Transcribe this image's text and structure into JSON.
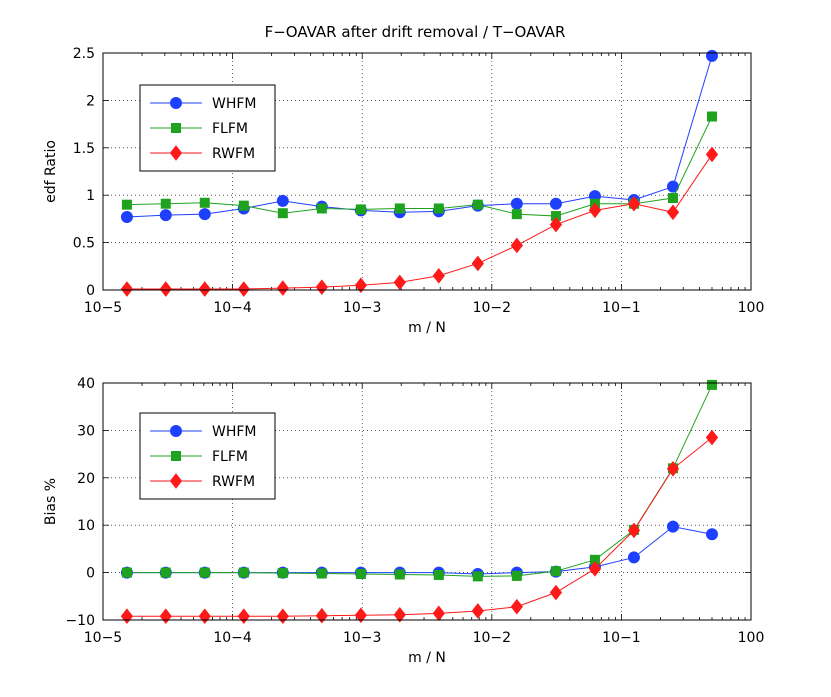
{
  "figure_title": "F−OAVAR after drift removal / T−OAVAR",
  "colors": {
    "WHFM": "#1f3fff",
    "FLFM": "#1fa31f",
    "RWFM": "#ff1a1a"
  },
  "chart_data": [
    {
      "type": "line",
      "title": "F−OAVAR after drift removal / T−OAVAR",
      "xlabel": "m / N",
      "ylabel": "edf Ratio",
      "xscale": "log",
      "xlim": [
        1e-05,
        1
      ],
      "ylim": [
        0,
        2.5
      ],
      "grid": true,
      "legend_position": "upper-left",
      "x_tick_labels": [
        "10−5",
        "10−4",
        "10−3",
        "10−2",
        "10−1",
        "100"
      ],
      "y_ticks": [
        0,
        0.5,
        1,
        1.5,
        2,
        2.5
      ],
      "y_tick_labels": [
        "0",
        "0.5",
        "1",
        "1.5",
        "2",
        "2.5"
      ],
      "x": [
        1.53e-05,
        3.05e-05,
        6.1e-05,
        0.000122,
        0.000244,
        0.000488,
        0.000977,
        0.00195,
        0.0039,
        0.0078,
        0.0156,
        0.03125,
        0.0625,
        0.125,
        0.25,
        0.5
      ],
      "series": [
        {
          "name": "WHFM",
          "marker": "circle",
          "values": [
            0.77,
            0.79,
            0.8,
            0.86,
            0.94,
            0.88,
            0.84,
            0.82,
            0.83,
            0.89,
            0.91,
            0.91,
            0.99,
            0.95,
            1.09,
            2.47
          ]
        },
        {
          "name": "FLFM",
          "marker": "square",
          "values": [
            0.9,
            0.91,
            0.92,
            0.89,
            0.81,
            0.86,
            0.85,
            0.86,
            0.86,
            0.9,
            0.8,
            0.78,
            0.91,
            0.91,
            0.97,
            1.83
          ]
        },
        {
          "name": "RWFM",
          "marker": "diamond",
          "values": [
            0.01,
            0.01,
            0.01,
            0.01,
            0.02,
            0.03,
            0.05,
            0.08,
            0.15,
            0.28,
            0.47,
            0.69,
            0.84,
            0.91,
            0.82,
            1.43
          ]
        }
      ]
    },
    {
      "type": "line",
      "title": "",
      "xlabel": "m / N",
      "ylabel": "Bias %",
      "xscale": "log",
      "xlim": [
        1e-05,
        1
      ],
      "ylim": [
        -10,
        40
      ],
      "grid": true,
      "legend_position": "upper-left",
      "x_tick_labels": [
        "10−5",
        "10−4",
        "10−3",
        "10−2",
        "10−1",
        "100"
      ],
      "y_ticks": [
        -10,
        0,
        10,
        20,
        30,
        40
      ],
      "y_tick_labels": [
        "−10",
        "0",
        "10",
        "20",
        "30",
        "40"
      ],
      "x": [
        1.53e-05,
        3.05e-05,
        6.1e-05,
        0.000122,
        0.000244,
        0.000488,
        0.000977,
        0.00195,
        0.0039,
        0.0078,
        0.0156,
        0.03125,
        0.0625,
        0.125,
        0.25,
        0.5
      ],
      "series": [
        {
          "name": "WHFM",
          "marker": "circle",
          "values": [
            0,
            0,
            0,
            0,
            0,
            0,
            0,
            0,
            0,
            -0.3,
            0,
            0.2,
            1.2,
            3.2,
            9.7,
            8.1
          ]
        },
        {
          "name": "FLFM",
          "marker": "square",
          "values": [
            0,
            0,
            0,
            0,
            -0.1,
            -0.2,
            -0.3,
            -0.4,
            -0.5,
            -0.8,
            -0.7,
            0.3,
            2.7,
            9.0,
            22.0,
            39.6
          ]
        },
        {
          "name": "RWFM",
          "marker": "diamond",
          "values": [
            -9.2,
            -9.2,
            -9.2,
            -9.2,
            -9.2,
            -9.1,
            -9.0,
            -8.9,
            -8.6,
            -8.1,
            -7.2,
            -4.2,
            0.8,
            8.9,
            21.9,
            28.5
          ]
        }
      ]
    }
  ]
}
